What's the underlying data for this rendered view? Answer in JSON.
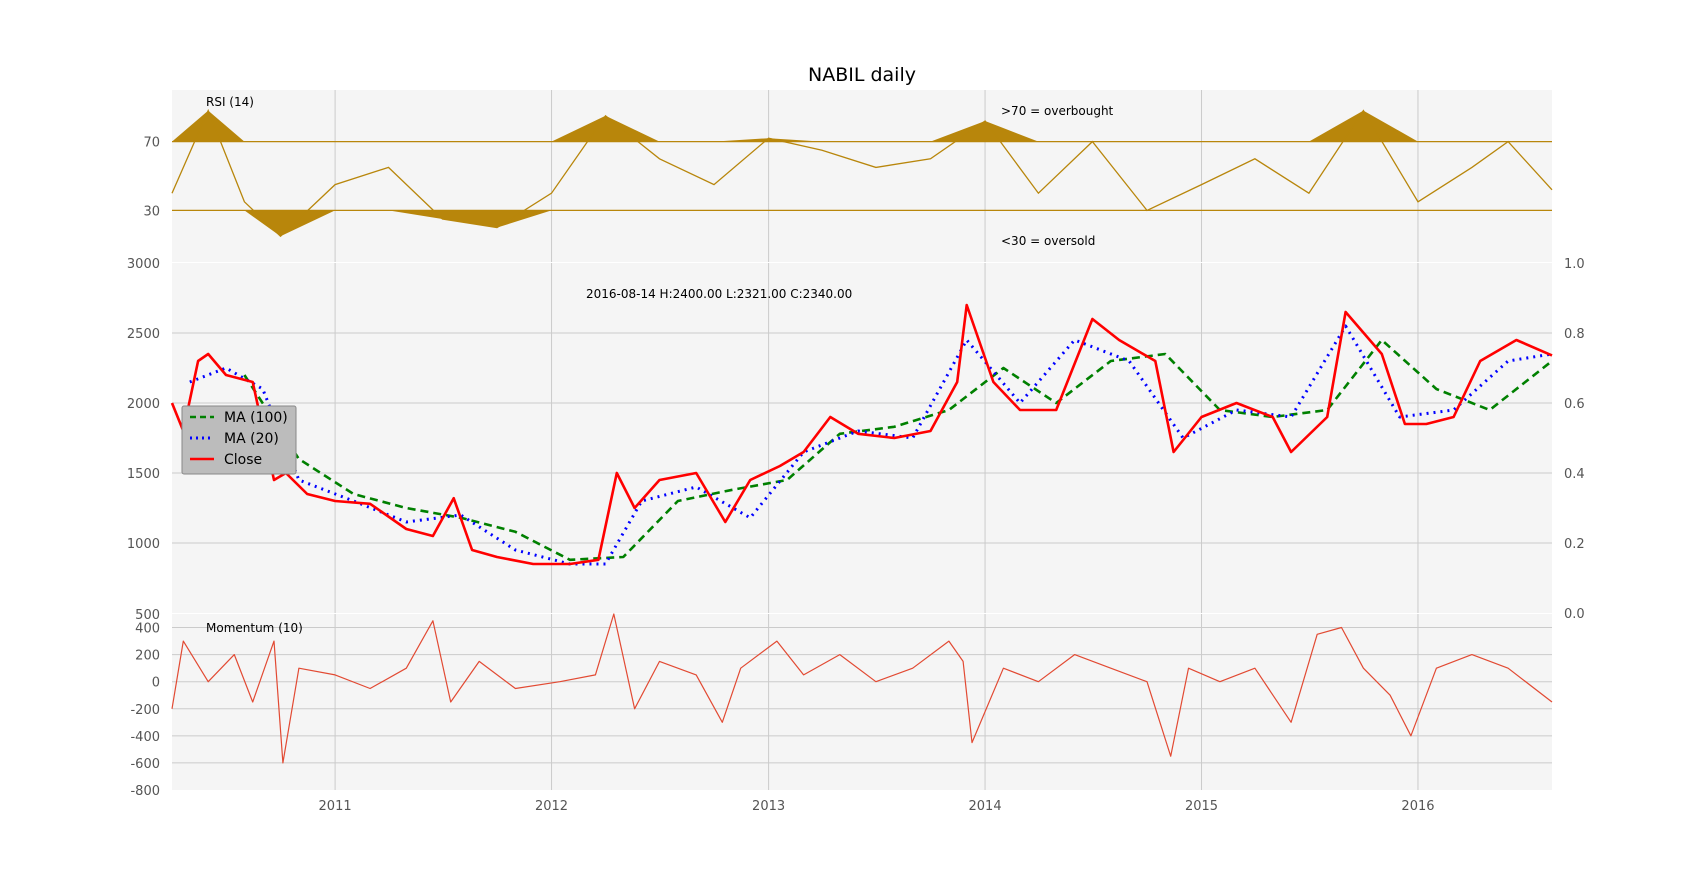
{
  "chart_data": [
    {
      "panel": "rsi",
      "type": "line",
      "title": "NABIL daily",
      "label": "RSI (14)",
      "overbought_note": ">70 = overbought",
      "oversold_note": "<30 = oversold",
      "yticks": [
        30,
        70
      ],
      "ylim": [
        0,
        100
      ],
      "thresholds": [
        30,
        70
      ],
      "fill_color": "#b8860b",
      "line_color": "#b8860b",
      "x": [
        "2010-04-01",
        "2010-06-01",
        "2010-08-01",
        "2010-10-01",
        "2011-01-01",
        "2011-04-01",
        "2011-07-01",
        "2011-10-01",
        "2012-01-01",
        "2012-04-01",
        "2012-07-01",
        "2012-10-01",
        "2013-01-01",
        "2013-04-01",
        "2013-07-01",
        "2013-10-01",
        "2014-01-01",
        "2014-04-01",
        "2014-07-01",
        "2014-10-01",
        "2015-01-01",
        "2015-04-01",
        "2015-07-01",
        "2015-10-01",
        "2016-01-01",
        "2016-04-01",
        "2016-06-01",
        "2016-08-14"
      ],
      "values": [
        40,
        88,
        35,
        15,
        45,
        55,
        25,
        20,
        40,
        85,
        60,
        45,
        72,
        65,
        55,
        60,
        82,
        40,
        70,
        30,
        45,
        60,
        40,
        88,
        35,
        55,
        70,
        42
      ]
    },
    {
      "panel": "price",
      "type": "line",
      "info_text": "2016-08-14 H:2400.00 L:2321.00 C:2340.00",
      "yticks_left": [
        1000,
        1500,
        2000,
        2500,
        3000
      ],
      "yticks_right": [
        "0.0",
        "0.2",
        "0.4",
        "0.6",
        "0.8",
        "1.0"
      ],
      "ylim": [
        500,
        3000
      ],
      "legend_position": "center-left",
      "series": [
        {
          "name": "MA (100)",
          "color": "#008000",
          "style": "dashed",
          "x": [
            "2010-08-01",
            "2010-11-01",
            "2011-02-01",
            "2011-05-01",
            "2011-08-01",
            "2011-11-01",
            "2012-02-01",
            "2012-05-01",
            "2012-08-01",
            "2012-11-01",
            "2013-02-01",
            "2013-05-01",
            "2013-08-01",
            "2013-11-01",
            "2014-02-01",
            "2014-05-01",
            "2014-08-01",
            "2014-11-01",
            "2015-02-01",
            "2015-05-01",
            "2015-08-01",
            "2015-11-01",
            "2016-02-01",
            "2016-05-01",
            "2016-08-14"
          ],
          "values": [
            2200,
            1600,
            1350,
            1250,
            1180,
            1080,
            880,
            900,
            1300,
            1380,
            1450,
            1780,
            1830,
            1950,
            2250,
            2000,
            2300,
            2350,
            1950,
            1900,
            1950,
            2450,
            2100,
            1950,
            2300
          ]
        },
        {
          "name": "MA (20)",
          "color": "#0000ff",
          "style": "dotted",
          "x": [
            "2010-05-01",
            "2010-07-01",
            "2010-09-01",
            "2010-11-01",
            "2011-02-01",
            "2011-05-01",
            "2011-08-01",
            "2011-11-01",
            "2012-02-01",
            "2012-04-01",
            "2012-06-01",
            "2012-09-01",
            "2012-12-01",
            "2013-03-01",
            "2013-06-01",
            "2013-09-01",
            "2013-12-01",
            "2014-03-01",
            "2014-06-01",
            "2014-09-01",
            "2014-12-01",
            "2015-03-01",
            "2015-06-01",
            "2015-09-01",
            "2015-12-01",
            "2016-03-01",
            "2016-06-01",
            "2016-08-14"
          ],
          "values": [
            2150,
            2250,
            2100,
            1450,
            1300,
            1150,
            1200,
            950,
            850,
            850,
            1300,
            1400,
            1180,
            1650,
            1800,
            1750,
            2450,
            2000,
            2450,
            2300,
            1750,
            1950,
            1900,
            2550,
            1900,
            1950,
            2300,
            2350
          ]
        },
        {
          "name": "Close",
          "color": "#ff0000",
          "style": "solid",
          "x": [
            "2010-04-01",
            "2010-04-20",
            "2010-05-15",
            "2010-06-01",
            "2010-07-01",
            "2010-08-15",
            "2010-09-20",
            "2010-10-10",
            "2010-11-15",
            "2011-01-01",
            "2011-03-01",
            "2011-05-01",
            "2011-06-15",
            "2011-07-20",
            "2011-08-20",
            "2011-10-01",
            "2011-12-01",
            "2012-02-01",
            "2012-03-20",
            "2012-04-20",
            "2012-05-20",
            "2012-07-01",
            "2012-09-01",
            "2012-10-20",
            "2012-12-01",
            "2013-01-20",
            "2013-03-01",
            "2013-04-15",
            "2013-06-01",
            "2013-08-01",
            "2013-10-01",
            "2013-11-15",
            "2013-12-01",
            "2014-01-15",
            "2014-03-01",
            "2014-05-01",
            "2014-07-01",
            "2014-08-15",
            "2014-10-15",
            "2014-11-15",
            "2015-01-01",
            "2015-03-01",
            "2015-05-01",
            "2015-06-01",
            "2015-08-01",
            "2015-09-01",
            "2015-11-01",
            "2015-12-10",
            "2016-01-15",
            "2016-03-01",
            "2016-04-15",
            "2016-06-15",
            "2016-08-14"
          ],
          "values": [
            2000,
            1800,
            2300,
            2350,
            2200,
            2150,
            1450,
            1500,
            1350,
            1300,
            1280,
            1100,
            1050,
            1320,
            950,
            900,
            850,
            850,
            880,
            1500,
            1250,
            1450,
            1500,
            1150,
            1450,
            1550,
            1650,
            1900,
            1780,
            1750,
            1800,
            2150,
            2700,
            2150,
            1950,
            1950,
            2600,
            2450,
            2300,
            1650,
            1900,
            2000,
            1900,
            1650,
            1900,
            2650,
            2350,
            1850,
            1850,
            1900,
            2300,
            2450,
            2340
          ]
        }
      ]
    },
    {
      "panel": "momentum",
      "type": "line",
      "label": "Momentum (10)",
      "yticks": [
        -800,
        -600,
        -400,
        -200,
        0,
        200,
        400,
        500
      ],
      "ylim": [
        -800,
        500
      ],
      "line_color": "#e24a33",
      "x": [
        "2010-04-01",
        "2010-04-20",
        "2010-06-01",
        "2010-07-15",
        "2010-08-15",
        "2010-09-20",
        "2010-10-05",
        "2010-11-01",
        "2011-01-01",
        "2011-03-01",
        "2011-05-01",
        "2011-06-15",
        "2011-07-15",
        "2011-09-01",
        "2011-11-01",
        "2012-01-15",
        "2012-03-15",
        "2012-04-15",
        "2012-05-20",
        "2012-07-01",
        "2012-09-01",
        "2012-10-15",
        "2012-11-15",
        "2013-01-15",
        "2013-03-01",
        "2013-05-01",
        "2013-07-01",
        "2013-09-01",
        "2013-11-01",
        "2013-11-25",
        "2013-12-10",
        "2014-02-01",
        "2014-04-01",
        "2014-06-01",
        "2014-08-01",
        "2014-10-01",
        "2014-11-10",
        "2014-12-10",
        "2015-02-01",
        "2015-04-01",
        "2015-06-01",
        "2015-07-15",
        "2015-08-25",
        "2015-10-01",
        "2015-11-15",
        "2015-12-20",
        "2016-02-01",
        "2016-04-01",
        "2016-06-01",
        "2016-08-14"
      ],
      "values": [
        -200,
        300,
        0,
        200,
        -150,
        300,
        -600,
        100,
        50,
        -50,
        100,
        450,
        -150,
        150,
        -50,
        0,
        50,
        500,
        -200,
        150,
        50,
        -300,
        100,
        300,
        50,
        200,
        0,
        100,
        300,
        150,
        -450,
        100,
        0,
        200,
        100,
        0,
        -550,
        100,
        0,
        100,
        -300,
        350,
        400,
        100,
        -100,
        -400,
        100,
        200,
        100,
        -150
      ]
    }
  ],
  "axes": {
    "x_ticks": [
      "2011",
      "2012",
      "2013",
      "2014",
      "2015",
      "2016"
    ]
  }
}
